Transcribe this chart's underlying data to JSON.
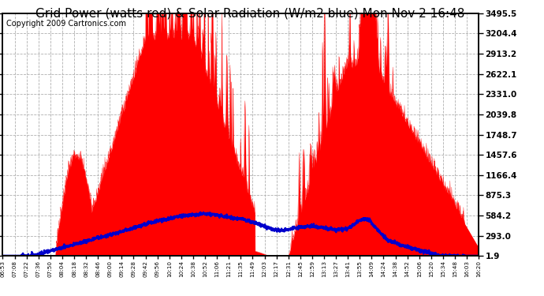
{
  "title": "Grid Power (watts red) & Solar Radiation (W/m2 blue) Mon Nov 2 16:48",
  "copyright": "Copyright 2009 Cartronics.com",
  "yticks": [
    1.9,
    293.0,
    584.2,
    875.3,
    1166.4,
    1457.6,
    1748.7,
    2039.8,
    2331.0,
    2622.1,
    2913.2,
    3204.4,
    3495.5
  ],
  "ymin": 0,
  "ymax": 3495.5,
  "xtick_labels": [
    "06:53",
    "07:08",
    "07:22",
    "07:36",
    "07:50",
    "08:04",
    "08:18",
    "08:32",
    "08:46",
    "09:00",
    "09:14",
    "09:28",
    "09:42",
    "09:56",
    "10:10",
    "10:24",
    "10:38",
    "10:52",
    "11:06",
    "11:21",
    "11:35",
    "11:49",
    "12:03",
    "12:17",
    "12:31",
    "12:45",
    "12:59",
    "13:13",
    "13:27",
    "13:41",
    "13:55",
    "14:09",
    "14:24",
    "14:38",
    "14:52",
    "15:06",
    "15:20",
    "15:34",
    "15:48",
    "16:03",
    "16:20"
  ],
  "bg_color": "#ffffff",
  "plot_bg_color": "#ffffff",
  "grid_color": "#b0b0b0",
  "red_color": "#ff0000",
  "blue_color": "#0000cc",
  "title_fontsize": 11,
  "copyright_fontsize": 7
}
